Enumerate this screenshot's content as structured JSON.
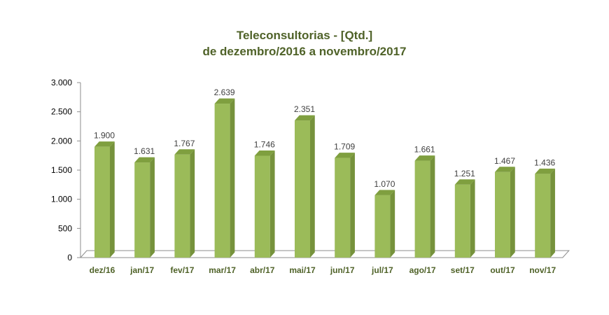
{
  "chart_data": {
    "type": "bar",
    "title": "Teleconsultorias -  [Qtd.]",
    "subtitle": "de dezembro/2016 a novembro/2017",
    "categories": [
      "dez/16",
      "jan/17",
      "fev/17",
      "mar/17",
      "abr/17",
      "mai/17",
      "jun/17",
      "jul/17",
      "ago/17",
      "set/17",
      "out/17",
      "nov/17"
    ],
    "values": [
      1900,
      1631,
      1767,
      2639,
      1746,
      2351,
      1709,
      1070,
      1661,
      1251,
      1467,
      1436
    ],
    "value_labels": [
      "1.900",
      "1.631",
      "1.767",
      "2.639",
      "1.746",
      "2.351",
      "1.709",
      "1.070",
      "1.661",
      "1.251",
      "1.467",
      "1.436"
    ],
    "ylim": [
      0,
      3000
    ],
    "yticks": [
      0,
      500,
      1000,
      1500,
      2000,
      2500,
      3000
    ],
    "ytick_labels": [
      "0",
      "500",
      "1.000",
      "1.500",
      "2.000",
      "2.500",
      "3.000"
    ],
    "xlabel": "",
    "ylabel": "",
    "grid": false,
    "legend": "none",
    "style": "3d-column",
    "colors": {
      "bar_front": "#9bbb59",
      "bar_side": "#76923c",
      "bar_top": "#7f9f3f",
      "title": "#4f6228",
      "category_label": "#4f6228",
      "value_label": "#404040",
      "axis": "#8c8c8c"
    }
  }
}
